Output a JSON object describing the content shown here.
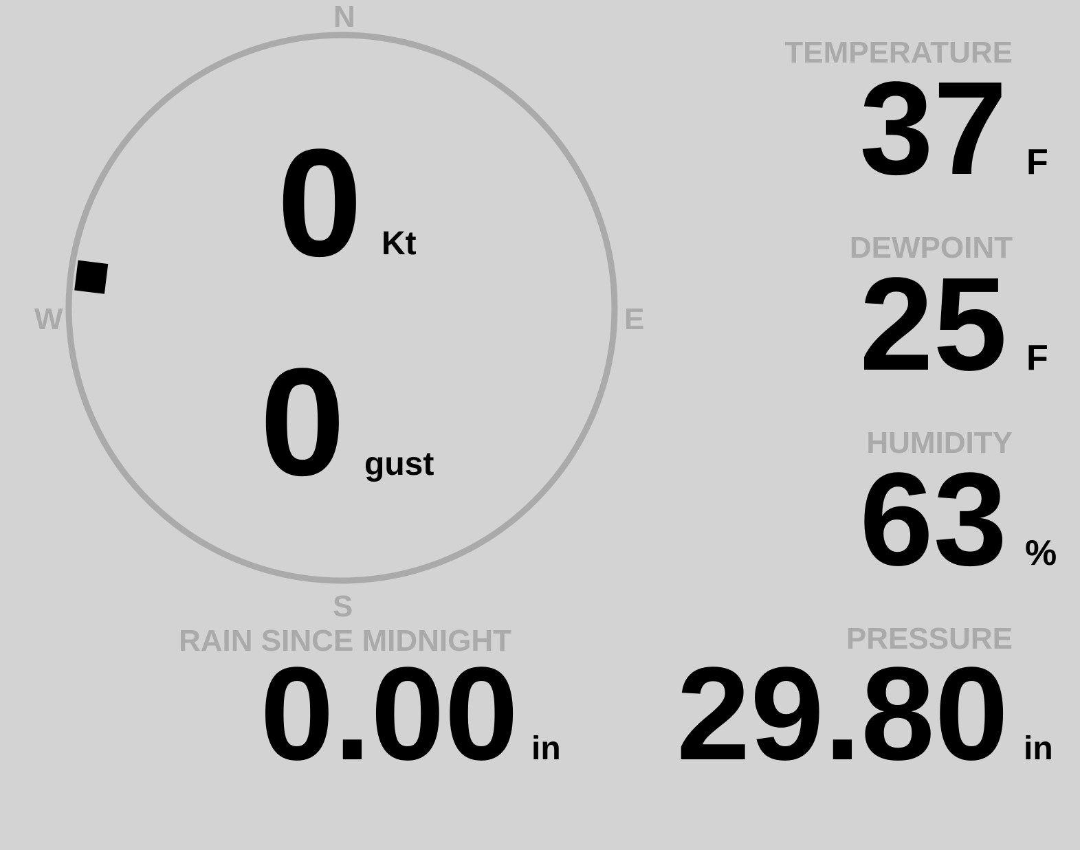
{
  "wind": {
    "speed": "0",
    "speed_unit": "Kt",
    "gust": "0",
    "gust_unit": "gust",
    "direction_deg": 277,
    "compass": {
      "n": "N",
      "e": "E",
      "s": "S",
      "w": "W"
    }
  },
  "temperature": {
    "label": "TEMPERATURE",
    "value": "37",
    "unit": "F"
  },
  "dewpoint": {
    "label": "DEWPOINT",
    "value": "25",
    "unit": "F"
  },
  "humidity": {
    "label": "HUMIDITY",
    "value": "63",
    "unit": "%"
  },
  "rain": {
    "label": "RAIN SINCE MIDNIGHT",
    "value": "0.00",
    "unit": "in"
  },
  "pressure": {
    "label": "PRESSURE",
    "value": "29.80",
    "unit": "in"
  },
  "colors": {
    "background": "#d3d3d3",
    "label": "#aaaaaa",
    "value": "#000000"
  }
}
